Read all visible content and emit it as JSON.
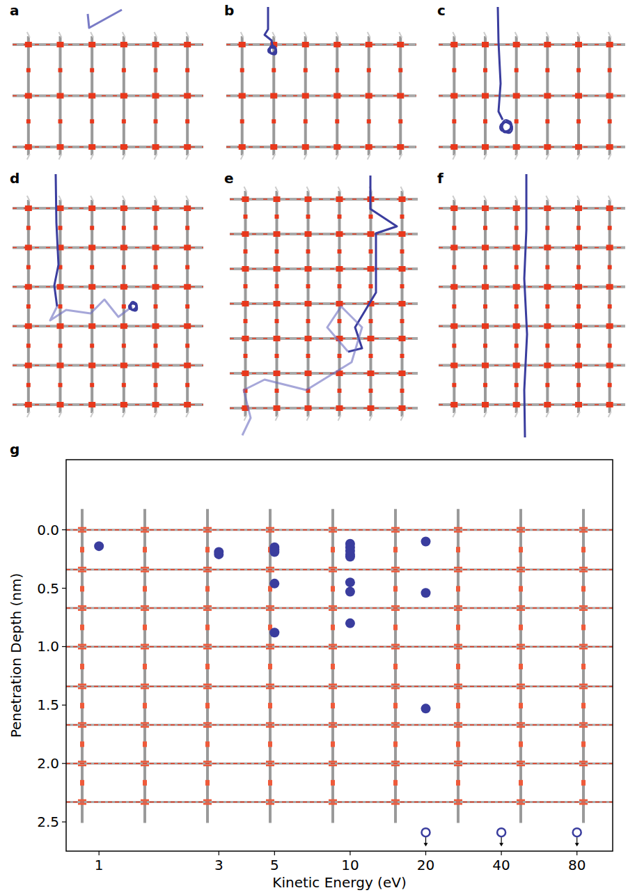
{
  "panel_labels": [
    "a",
    "b",
    "c",
    "d",
    "e",
    "f",
    "g"
  ],
  "chart_data": {
    "type": "scatter",
    "x_label": "Kinetic Energy (eV)",
    "y_label": "Penetration Depth (nm)",
    "log": "x",
    "xlim": [
      0.74,
      111
    ],
    "ylim": [
      2.75,
      -0.6
    ],
    "xticks": [
      1,
      3,
      5,
      10,
      20,
      40,
      80
    ],
    "yticks": [
      {
        "value": 0,
        "label": "0.0"
      },
      {
        "value": 0.5,
        "label": "0.5"
      },
      {
        "value": 1,
        "label": "1.0"
      },
      {
        "value": 1.5,
        "label": "1.5"
      },
      {
        "value": 2,
        "label": "2.0"
      },
      {
        "value": 2.5,
        "label": "2.5"
      }
    ],
    "reference_lines": [
      0,
      0.34,
      0.67,
      1.0,
      1.34,
      1.67,
      2.0,
      2.33
    ],
    "series": [
      {
        "color": "#3a3d9e",
        "marker": "filled",
        "x": [
          1,
          3,
          3,
          5,
          5,
          5,
          5,
          5,
          10,
          10,
          10,
          10,
          10,
          10,
          10,
          10,
          20,
          20,
          20
        ],
        "values": [
          0.14,
          0.19,
          0.21,
          0.15,
          0.17,
          0.19,
          0.46,
          0.88,
          0.12,
          0.15,
          0.18,
          0.21,
          0.23,
          0.45,
          0.53,
          0.8,
          0.1,
          0.54,
          1.53
        ]
      },
      {
        "color": "#3a3d9e",
        "marker": "open",
        "x": [
          20,
          40,
          80
        ],
        "values": [
          2.59,
          2.59,
          2.59
        ]
      }
    ]
  }
}
